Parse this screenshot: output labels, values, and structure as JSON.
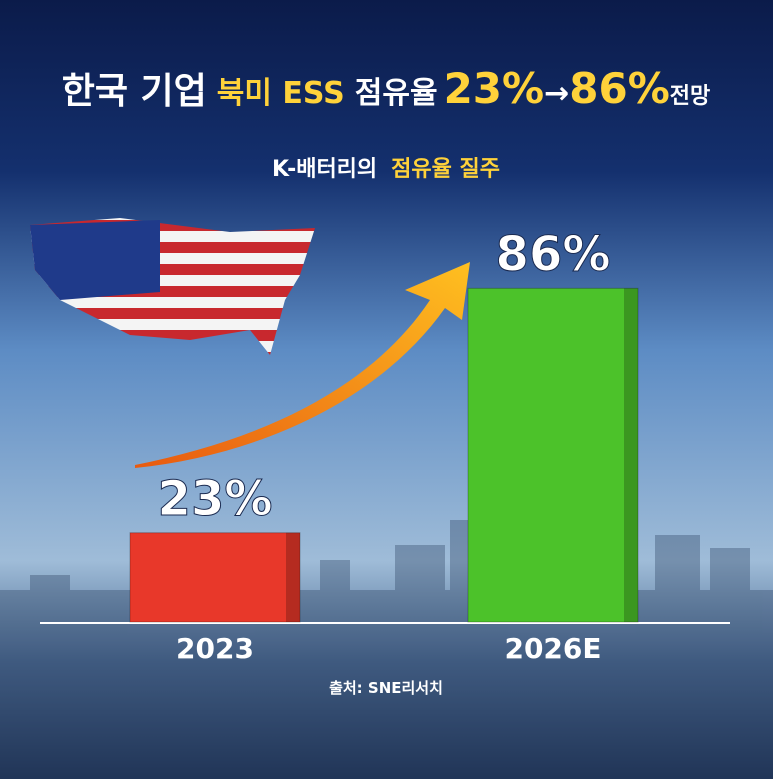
{
  "chart_data": {
    "type": "bar",
    "title": [
      "한국 기업",
      "북미 ESS",
      "점유율",
      "23%",
      "→",
      "86%",
      "전망"
    ],
    "subtitle": [
      "K-배터리의",
      "점유율 질주"
    ],
    "source": "출처: SNE리서치",
    "categories": [
      "2023",
      "2026E"
    ],
    "values": [
      23,
      86
    ],
    "value_labels": [
      "23%",
      "86%"
    ],
    "colors": [
      "#e8382a",
      "#4cc22a"
    ],
    "ylim": [
      0,
      100
    ]
  }
}
